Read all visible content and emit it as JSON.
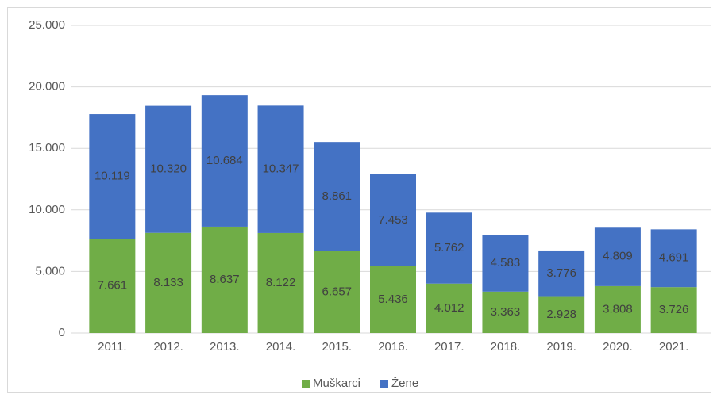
{
  "chart_data": {
    "type": "bar",
    "stacked": true,
    "categories": [
      "2011.",
      "2012.",
      "2013.",
      "2014.",
      "2015.",
      "2016.",
      "2017.",
      "2018.",
      "2019.",
      "2020.",
      "2021."
    ],
    "series": [
      {
        "name": "Muškarci",
        "color": "#70ad47",
        "values": [
          7661,
          8133,
          8637,
          8122,
          6657,
          5436,
          4012,
          3363,
          2928,
          3808,
          3726
        ],
        "value_labels": [
          "7.661",
          "8.133",
          "8.637",
          "8.122",
          "6.657",
          "5.436",
          "4.012",
          "3.363",
          "2.928",
          "3.808",
          "3.726"
        ]
      },
      {
        "name": "Žene",
        "color": "#4472c4",
        "values": [
          10119,
          10320,
          10684,
          10347,
          8861,
          7453,
          5762,
          4583,
          3776,
          4809,
          4691
        ],
        "value_labels": [
          "10.119",
          "10.320",
          "10.684",
          "10.347",
          "8.861",
          "7.453",
          "5.762",
          "4.583",
          "3.776",
          "4.809",
          "4.691"
        ]
      }
    ],
    "ylim": [
      0,
      25000
    ],
    "yticks": [
      0,
      {
        "value": 5000,
        "label": "5.000"
      },
      {
        "value": 10000,
        "label": "10.000"
      },
      {
        "value": 15000,
        "label": "15.000"
      },
      {
        "value": 20000,
        "label": "20.000"
      },
      {
        "value": 25000,
        "label": "25.000"
      }
    ],
    "grid": true,
    "legend": "bottom"
  }
}
